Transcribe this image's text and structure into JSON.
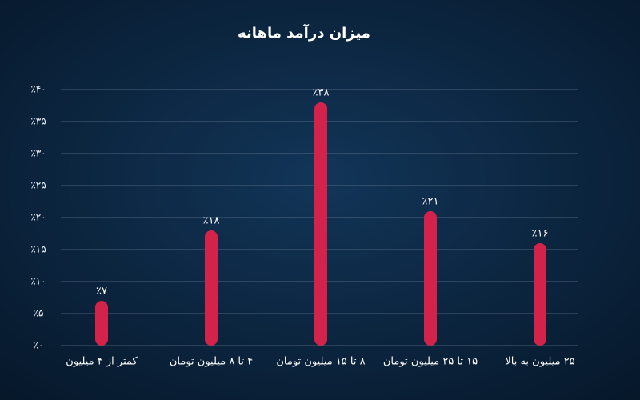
{
  "chart_data": {
    "type": "bar",
    "title": "میزان درآمد ماهانه",
    "categories": [
      "کمتر از ۴ میلیون",
      "۴ تا ۸ میلیون تومان",
      "۸ تا ۱۵ میلیون تومان",
      "۱۵ تا ۲۵ میلیون تومان",
      "۲۵ میلیون به بالا"
    ],
    "values": [
      7,
      18,
      38,
      21,
      16
    ],
    "value_labels": [
      "٪۷",
      "٪۱۸",
      "٪۳۸",
      "٪۲۱",
      "٪۱۶"
    ],
    "color": "#d4234a",
    "ylim": [
      0,
      40
    ],
    "yticks": [
      {
        "value": 0,
        "label": "٪۰"
      },
      {
        "value": 5,
        "label": "٪۵"
      },
      {
        "value": 10,
        "label": "٪۱۰"
      },
      {
        "value": 15,
        "label": "٪۱۵"
      },
      {
        "value": 20,
        "label": "٪۲۰"
      },
      {
        "value": 25,
        "label": "٪۲۵"
      },
      {
        "value": 30,
        "label": "٪۳۰"
      },
      {
        "value": 35,
        "label": "٪۳۵"
      },
      {
        "value": 40,
        "label": "٪۴۰"
      }
    ],
    "grid": true
  }
}
